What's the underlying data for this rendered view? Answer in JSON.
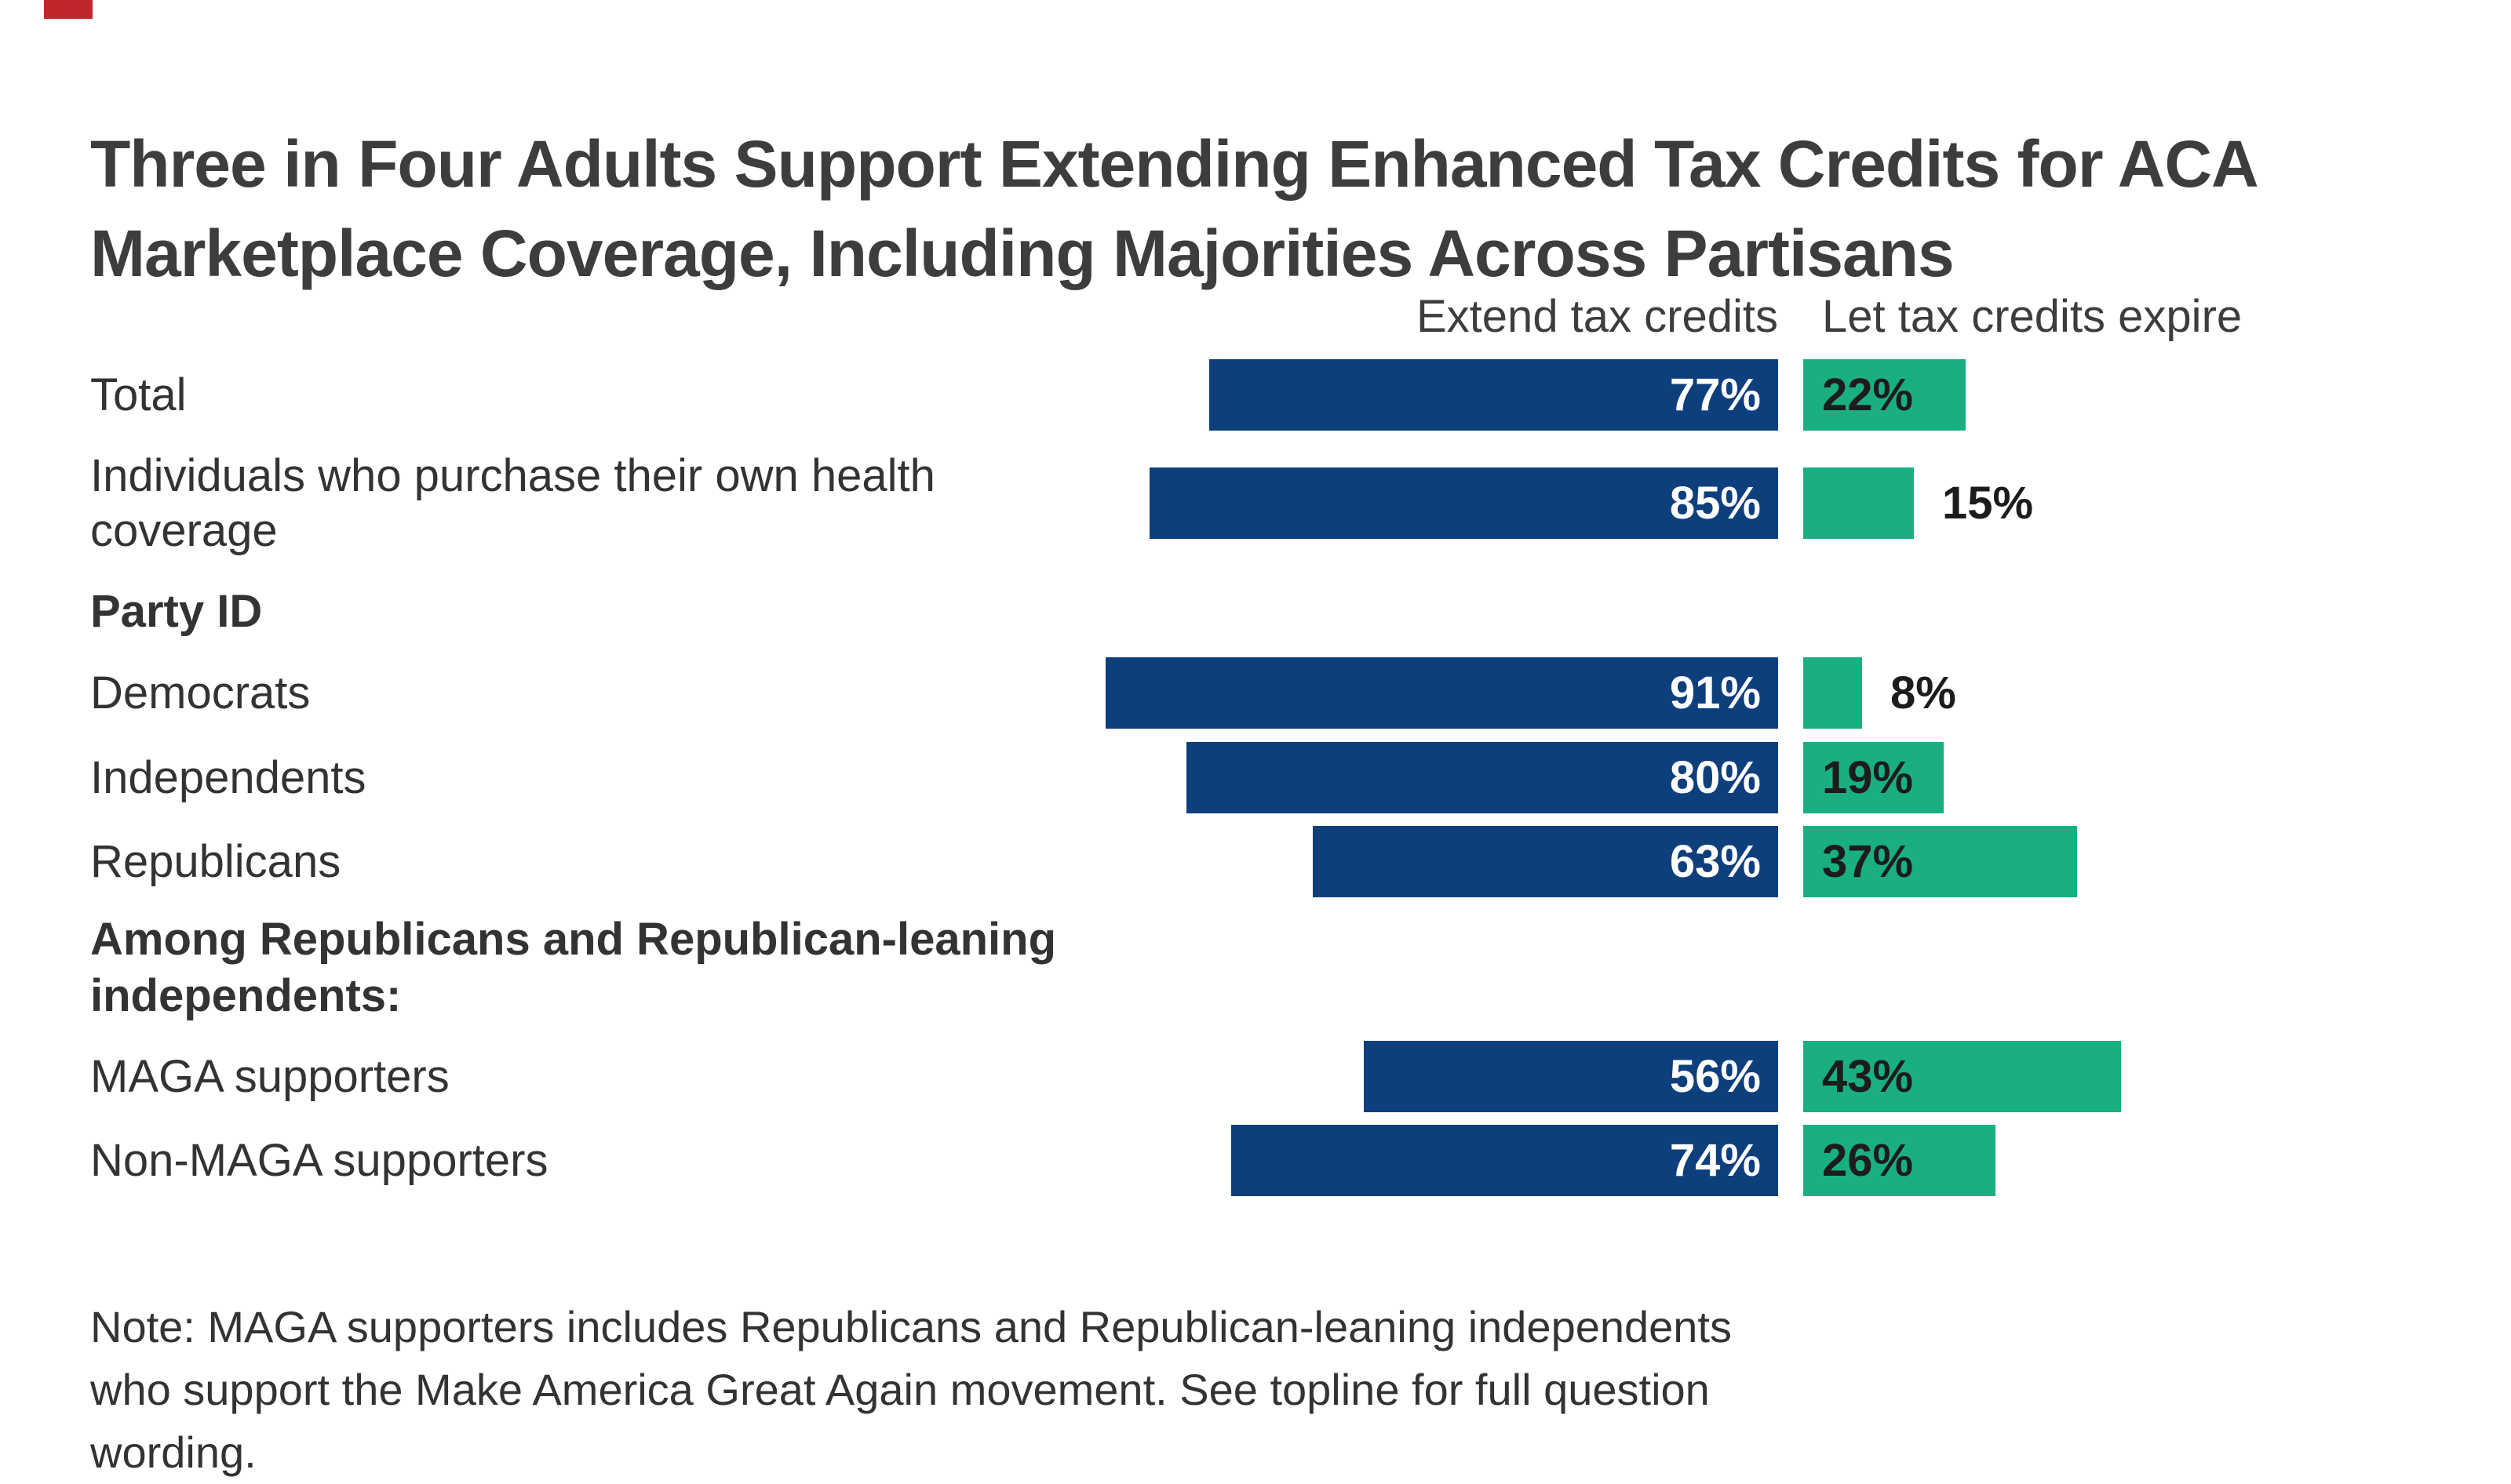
{
  "page": {
    "title": "Three in Four Adults Support Extending Enhanced Tax Credits for ACA Marketplace Coverage, Including Majorities Across Partisans",
    "note": "Note: MAGA supporters includes Republicans and Republican-leaning independents who support the Make America Great Again movement. See topline for full question wording."
  },
  "colors": {
    "extend_blue": "#0d3f7d",
    "expire_green": "#1aaf82",
    "accent_red": "#c0272d",
    "value_text_dark": "#1c1c1c",
    "value_text_light": "#ffffff"
  },
  "chart_data": {
    "type": "bar",
    "orientation": "horizontal",
    "title": "Three in Four Adults Support Extending Enhanced Tax Credits for ACA Marketplace Coverage, Including Majorities Across Partisans",
    "legend_position": "top",
    "value_unit": "%",
    "xlim": [
      0,
      100
    ],
    "series": [
      {
        "name": "Extend tax credits",
        "color": "#0d3f7d"
      },
      {
        "name": "Let tax credits expire",
        "color": "#1aaf82"
      }
    ],
    "rows": [
      {
        "type": "data",
        "label": "Total",
        "extend": 77,
        "expire": 22
      },
      {
        "type": "data",
        "label": "Individuals who purchase their own health coverage",
        "extend": 85,
        "expire": 15
      },
      {
        "type": "header",
        "label": "Party ID"
      },
      {
        "type": "data",
        "label": "Democrats",
        "extend": 91,
        "expire": 8
      },
      {
        "type": "data",
        "label": "Independents",
        "extend": 80,
        "expire": 19
      },
      {
        "type": "data",
        "label": "Republicans",
        "extend": 63,
        "expire": 37
      },
      {
        "type": "header",
        "label": "Among Republicans and Republican-leaning independents:"
      },
      {
        "type": "data",
        "label": "MAGA supporters",
        "extend": 56,
        "expire": 43
      },
      {
        "type": "data",
        "label": "Non-MAGA supporters",
        "extend": 74,
        "expire": 26
      }
    ]
  }
}
